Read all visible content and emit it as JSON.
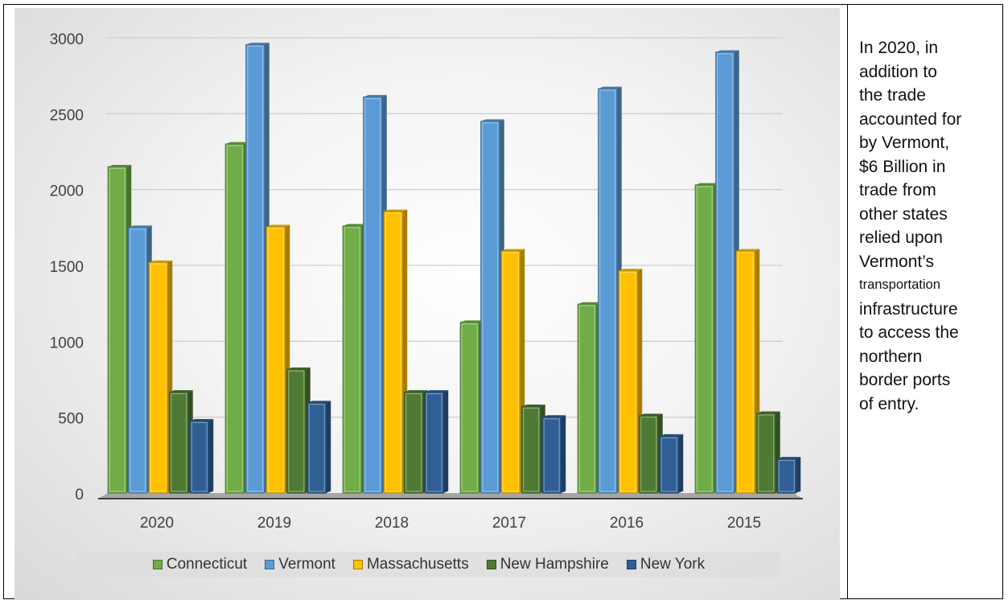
{
  "side_note": {
    "lines": [
      "In 2020, in",
      "addition to",
      "the trade",
      "accounted for",
      "by Vermont,",
      "$6 Billion in",
      "trade from",
      "other states",
      "relied upon",
      "Vermont’s",
      "transportation",
      "infrastructure",
      "to access the",
      "northern",
      "border ports",
      "of entry."
    ]
  },
  "chart_data": {
    "type": "bar",
    "categories": [
      "2020",
      "2019",
      "2018",
      "2017",
      "2016",
      "2015"
    ],
    "ylim": [
      0,
      3000
    ],
    "yticks": [
      "0",
      "500",
      "1000",
      "1500",
      "2000",
      "2500",
      "3000"
    ],
    "grid": true,
    "legend_position": "bottom",
    "series": [
      {
        "name": "Connecticut",
        "color": "#70ad47",
        "values": [
          2150,
          2300,
          1760,
          1125,
          1245,
          2030
        ]
      },
      {
        "name": "Vermont",
        "color": "#5b9bd5",
        "values": [
          1750,
          2955,
          2610,
          2450,
          2665,
          2905
        ]
      },
      {
        "name": "Massachusetts",
        "color": "#ffc000",
        "values": [
          1520,
          1755,
          1855,
          1595,
          1465,
          1595
        ]
      },
      {
        "name": "New Hampshire",
        "color": "#4f7a33",
        "values": [
          665,
          815,
          665,
          570,
          510,
          525
        ]
      },
      {
        "name": "New York",
        "color": "#2f5f95",
        "values": [
          475,
          595,
          665,
          500,
          375,
          225
        ]
      }
    ]
  }
}
